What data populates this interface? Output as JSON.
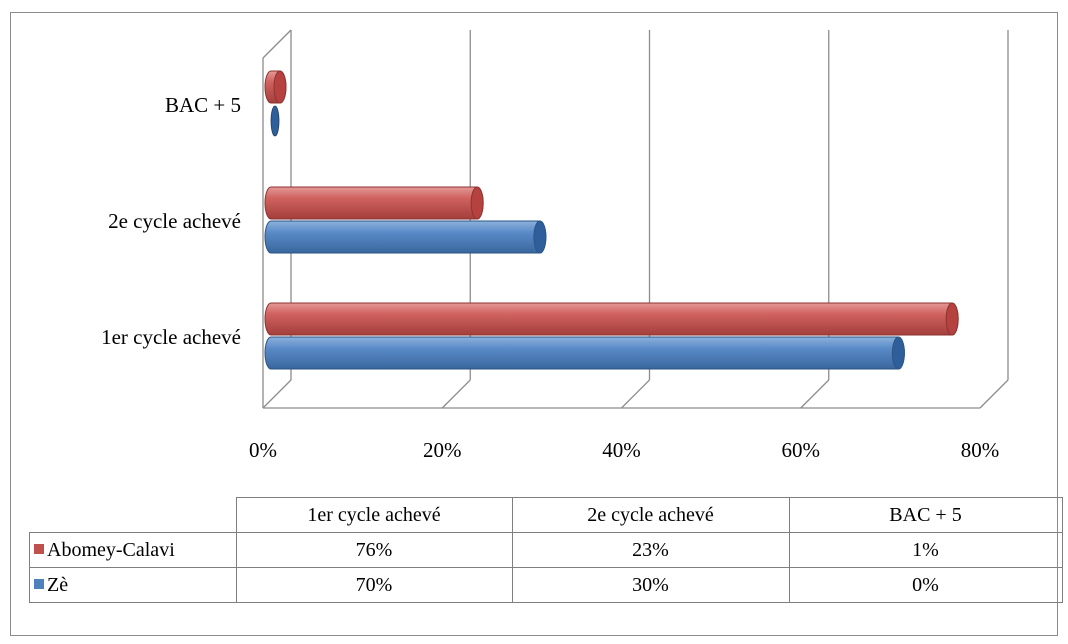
{
  "chart_data": {
    "type": "bar",
    "orientation": "horizontal",
    "style": "3d-cylinder",
    "categories": [
      "1er cycle achevé",
      "2e cycle achevé",
      "BAC + 5"
    ],
    "series": [
      {
        "name": "Abomey-Calavi",
        "color": "#c0504d",
        "values": [
          76,
          23,
          1
        ],
        "labels": [
          "76%",
          "23%",
          "1%"
        ]
      },
      {
        "name": "Zè",
        "color": "#4f81bd",
        "values": [
          70,
          30,
          0
        ],
        "labels": [
          "70%",
          "30%",
          "0%"
        ]
      }
    ],
    "xlim": [
      0,
      80
    ],
    "xticks": [
      "0%",
      "20%",
      "40%",
      "60%",
      "80%"
    ],
    "grid": true,
    "legend": "data-table-below"
  }
}
